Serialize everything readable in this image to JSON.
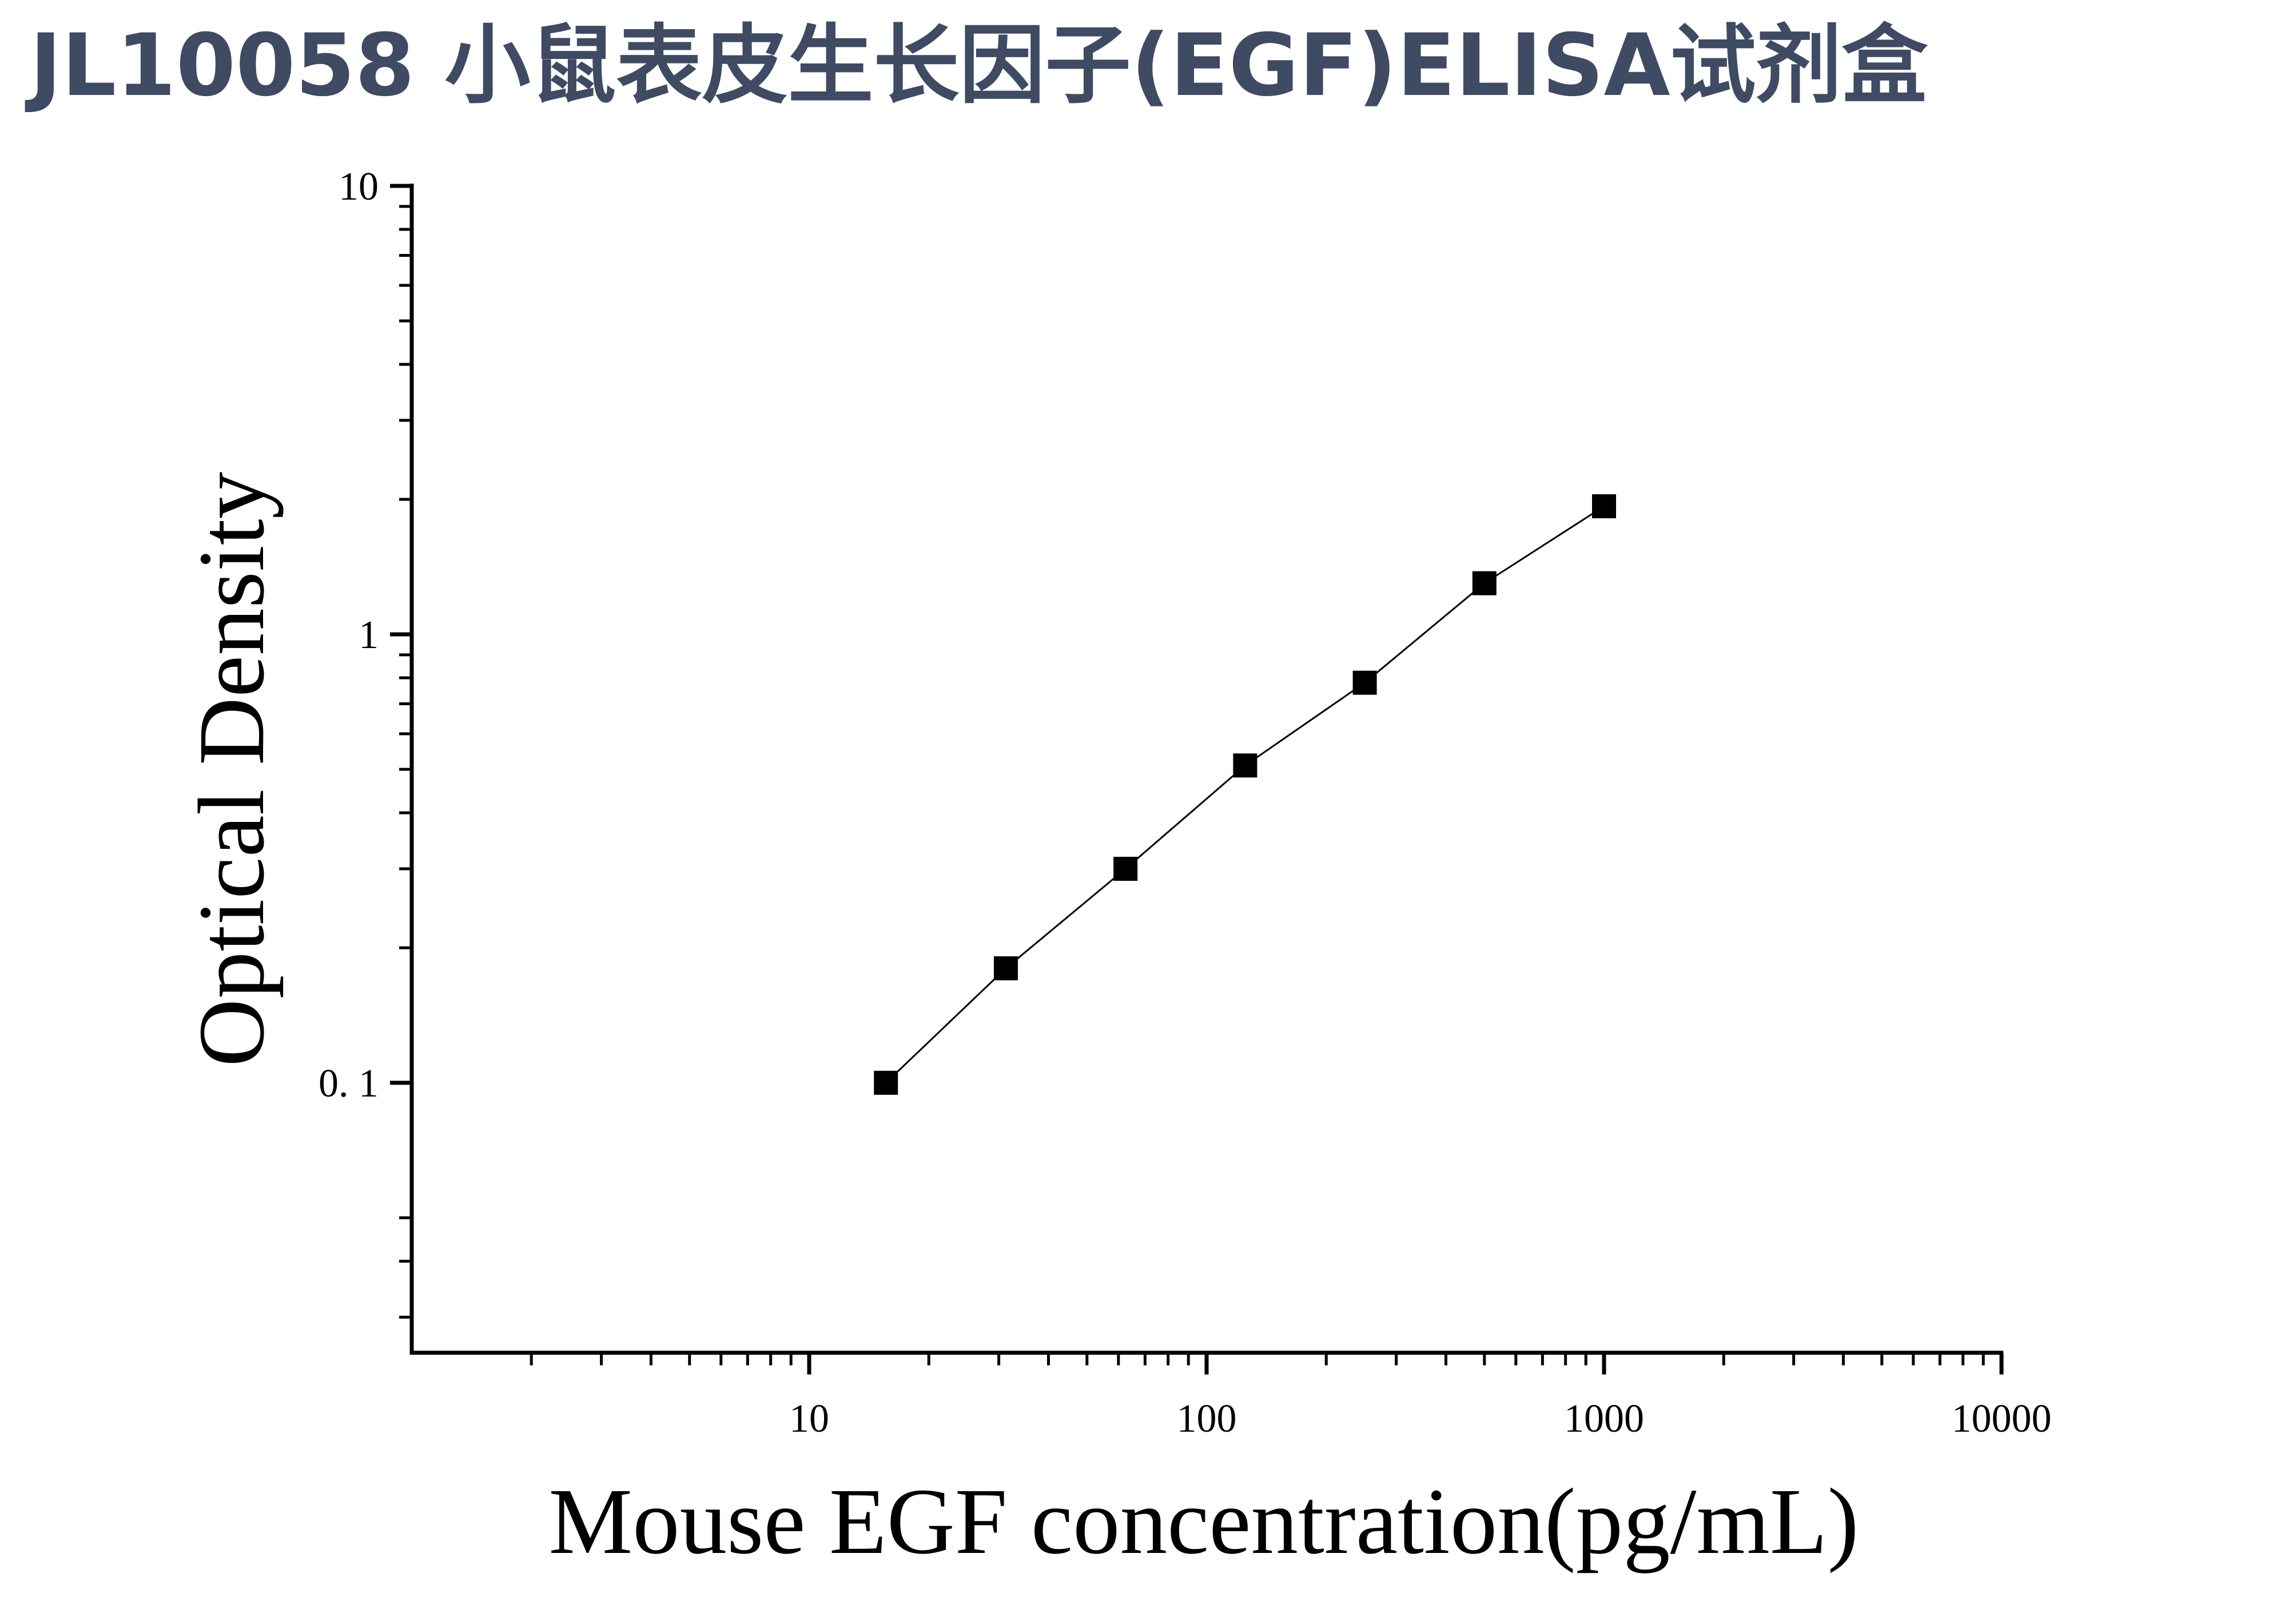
{
  "title": "JL10058 小鼠表皮生长因子(EGF)ELISA试剂盒",
  "chart_data": {
    "type": "scatter",
    "title": "JL10058 小鼠表皮生长因子(EGF)ELISA试剂盒",
    "xlabel": "Mouse EGF concentration(pg/mL)",
    "ylabel": "Optical Density",
    "x_scale": "log",
    "y_scale": "log",
    "xlim": [
      1,
      10000
    ],
    "ylim": [
      0.025,
      10
    ],
    "x_tick_labels": [
      "10",
      "100",
      "1000",
      "10000"
    ],
    "y_tick_labels": [
      "10",
      "1",
      "0. 1"
    ],
    "grid": false,
    "legend": "none",
    "marker": "square",
    "marker_color": "#000000",
    "fit_line": true,
    "series": [
      {
        "x": [
          15.6,
          31.25,
          62.5,
          125,
          250,
          500,
          1000
        ],
        "y": [
          0.1,
          0.18,
          0.3,
          0.51,
          0.78,
          1.3,
          1.93
        ]
      }
    ]
  }
}
